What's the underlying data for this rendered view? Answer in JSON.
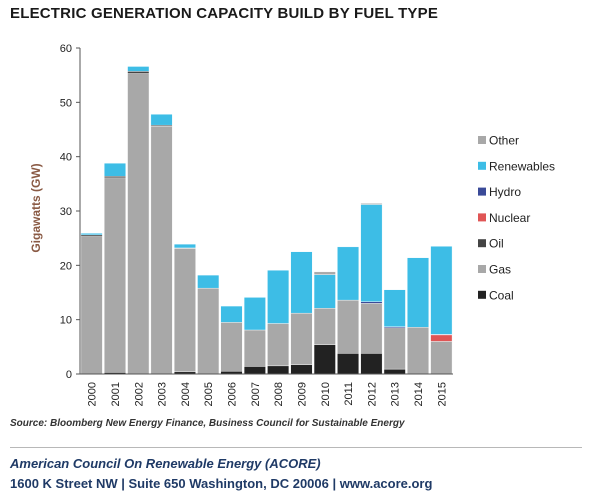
{
  "chart_data": {
    "type": "bar",
    "stacked": true,
    "title": "ELECTRIC GENERATION CAPACITY BUILD BY FUEL TYPE",
    "xlabel": "",
    "ylabel": "Gigawatts (GW)",
    "ylim": [
      0,
      60
    ],
    "yticks": [
      0,
      10,
      20,
      30,
      40,
      50,
      60
    ],
    "categories": [
      "2000",
      "2001",
      "2002",
      "2003",
      "2004",
      "2005",
      "2006",
      "2007",
      "2008",
      "2009",
      "2010",
      "2011",
      "2012",
      "2013",
      "2014",
      "2015"
    ],
    "series": [
      {
        "name": "Coal",
        "color": "#222222",
        "values": [
          0,
          0.3,
          0,
          0,
          0.4,
          0,
          0.5,
          1.4,
          1.5,
          1.7,
          5.4,
          3.8,
          3.8,
          0.9,
          0,
          0
        ]
      },
      {
        "name": "Gas",
        "color": "#a8a8a8",
        "values": [
          25.3,
          35.8,
          55.3,
          45.6,
          22.7,
          15.8,
          9.0,
          6.7,
          7.8,
          9.5,
          6.7,
          9.8,
          9.2,
          7.6,
          8.6,
          6.0
        ]
      },
      {
        "name": "Oil",
        "color": "#444444",
        "values": [
          0.3,
          0.3,
          0.4,
          0.2,
          0.1,
          0,
          0,
          0,
          0,
          0,
          0,
          0,
          0,
          0,
          0,
          0
        ]
      },
      {
        "name": "Nuclear",
        "color": "#e05555",
        "values": [
          0,
          0,
          0,
          0,
          0,
          0,
          0,
          0,
          0,
          0,
          0,
          0,
          0,
          0,
          0,
          1.2
        ]
      },
      {
        "name": "Hydro",
        "color": "#3a4a98",
        "values": [
          0,
          0,
          0,
          0,
          0,
          0,
          0,
          0,
          0,
          0,
          0,
          0,
          0.3,
          0.2,
          0,
          0.1
        ]
      },
      {
        "name": "Renewables",
        "color": "#3dbde6",
        "values": [
          0.3,
          2.4,
          0.9,
          2.0,
          0.7,
          2.4,
          3.0,
          6.0,
          9.8,
          11.3,
          6.2,
          9.8,
          17.9,
          6.8,
          12.8,
          16.2
        ]
      },
      {
        "name": "Other",
        "color": "#a8a8a8",
        "values": [
          0,
          0,
          0,
          0,
          0,
          0,
          0,
          0,
          0,
          0,
          0.5,
          0,
          0.2,
          0,
          0,
          0
        ]
      }
    ],
    "legend": {
      "position": "right",
      "order": [
        "Other",
        "Renewables",
        "Hydro",
        "Nuclear",
        "Oil",
        "Gas",
        "Coal"
      ]
    },
    "grid": false
  },
  "source": "Source: Bloomberg New Energy Finance, Business Council for Sustainable Energy",
  "footer": {
    "org_name": "American Council On Renewable Energy (ACORE)",
    "address": "1600 K Street NW | Suite 650 Washington, DC 20006 | www.acore.org"
  }
}
